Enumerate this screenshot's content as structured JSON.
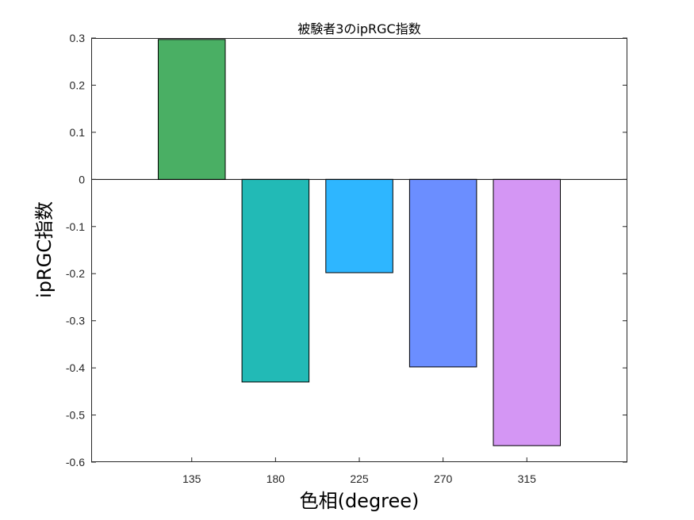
{
  "chart_data": {
    "type": "bar",
    "title": "被験者3のipRGC指数",
    "xlabel": "色相(degree)",
    "ylabel": "ipRGC指数",
    "categories": [
      "135",
      "180",
      "225",
      "270",
      "315"
    ],
    "values": [
      0.297,
      -0.43,
      -0.198,
      -0.398,
      -0.565
    ],
    "colors": [
      "#4aaf64",
      "#22bab6",
      "#2eb6ff",
      "#6b8eff",
      "#d496f4"
    ],
    "ylim": [
      -0.6,
      0.3
    ],
    "yticks": [
      "0.3",
      "0.2",
      "0.1",
      "0",
      "-0.1",
      "-0.2",
      "-0.3",
      "-0.4",
      "-0.5",
      "-0.6"
    ],
    "grid": false,
    "legend": "none"
  }
}
